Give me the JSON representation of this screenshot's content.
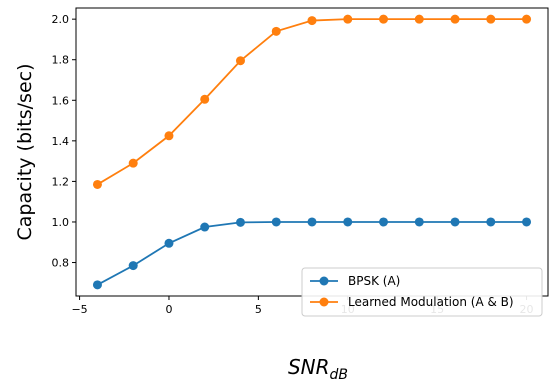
{
  "chart_data": {
    "type": "line",
    "title": "",
    "xlabel": "SNR",
    "xlabel_subscript": "dB",
    "ylabel": "Capacity (bits/sec)",
    "xlim": [
      -5.2,
      21.2
    ],
    "ylim": [
      0.635,
      2.055
    ],
    "xticks": [
      -5,
      0,
      5,
      10,
      15,
      20
    ],
    "xtick_labels": [
      "−5",
      "0",
      "5",
      "10",
      "15",
      "20"
    ],
    "yticks": [
      0.8,
      1.0,
      1.2,
      1.4,
      1.6,
      1.8,
      2.0
    ],
    "ytick_labels": [
      "0.8",
      "1.0",
      "1.2",
      "1.4",
      "1.6",
      "1.8",
      "2.0"
    ],
    "grid": false,
    "legend_position": "bottom-right",
    "x": [
      -4,
      -2,
      0,
      2,
      4,
      6,
      8,
      10,
      12,
      14,
      16,
      18,
      20
    ],
    "series": [
      {
        "name": "BPSK (A)",
        "color": "#1f77b4",
        "values": [
          0.69,
          0.785,
          0.895,
          0.975,
          0.998,
          1.0,
          1.0,
          1.0,
          1.0,
          1.0,
          1.0,
          1.0,
          1.0
        ]
      },
      {
        "name": "Learned Modulation (A & B)",
        "color": "#ff7f0e",
        "values": [
          1.185,
          1.29,
          1.425,
          1.605,
          1.795,
          1.94,
          1.993,
          2.0,
          2.0,
          2.0,
          2.0,
          2.0,
          2.0
        ]
      }
    ]
  }
}
